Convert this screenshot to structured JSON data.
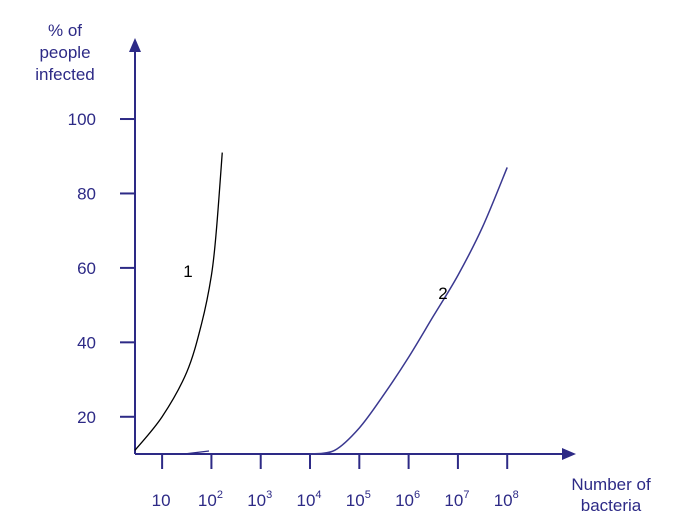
{
  "colors": {
    "axis": "#2d2a86",
    "curve_1": "#000000",
    "curve_2": "#3a3890",
    "text": "#2d2a86"
  },
  "chart_data": {
    "type": "line",
    "title": "",
    "ylabel_lines": [
      "% of",
      "people",
      "infected"
    ],
    "xlabel_lines": [
      "Number of",
      "bacteria"
    ],
    "y_ticks": [
      20,
      40,
      60,
      80,
      100
    ],
    "x_ticks": [
      {
        "value": 1,
        "base": "10",
        "exp": ""
      },
      {
        "value": 2,
        "base": "10",
        "exp": "2"
      },
      {
        "value": 3,
        "base": "10",
        "exp": "3"
      },
      {
        "value": 4,
        "base": "10",
        "exp": "4"
      },
      {
        "value": 5,
        "base": "10",
        "exp": "5"
      },
      {
        "value": 6,
        "base": "10",
        "exp": "6"
      },
      {
        "value": 7,
        "base": "10",
        "exp": "7"
      },
      {
        "value": 8,
        "base": "10",
        "exp": "8"
      }
    ],
    "x_scale": "log10",
    "xlim": [
      0.45,
      8.45
    ],
    "ylim": [
      10,
      110
    ],
    "grid": false,
    "series": [
      {
        "name": "1",
        "color": "#000000",
        "x": [
          0.45,
          1.0,
          1.5,
          1.8,
          2.0,
          2.1,
          2.22
        ],
        "y": [
          11,
          20,
          32,
          45,
          58,
          70,
          91
        ]
      },
      {
        "name": "2",
        "color": "#3a3890",
        "x": [
          4.0,
          4.5,
          5.0,
          5.5,
          6.0,
          6.5,
          7.0,
          7.5,
          8.0
        ],
        "y": [
          10,
          11,
          17,
          26,
          36,
          47,
          58,
          71,
          87
        ]
      }
    ],
    "curve_labels": [
      {
        "text": "1",
        "x": 1.6,
        "y": 62
      },
      {
        "text": "2",
        "x": 7.2,
        "y": 54
      }
    ]
  }
}
